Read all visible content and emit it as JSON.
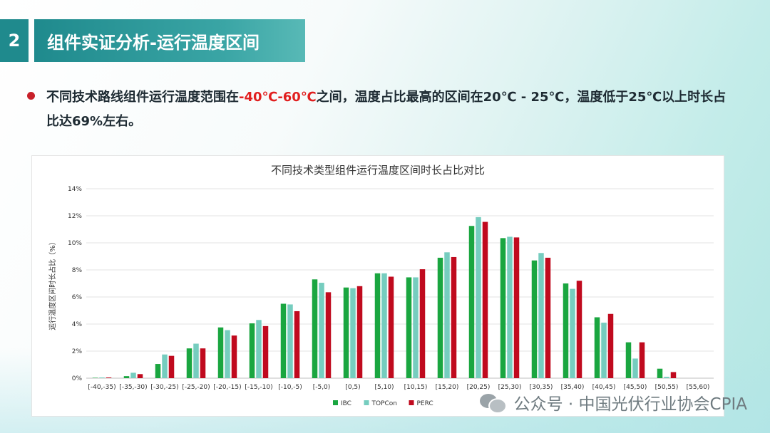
{
  "header": {
    "number": "2",
    "title": "组件实证分析-运行温度区间"
  },
  "bullet": {
    "part1": "不同技术路线组件运行温度范围在",
    "highlight": "-40℃-60℃",
    "part2": "之间，温度占比最高的区间在20℃ - 25℃，温度低于25℃以上时长占比达69%左右。"
  },
  "watermark": {
    "text": "公众号 · 中国光伏行业协会CPIA",
    "icon": "wechat-icon"
  },
  "colors": {
    "IBC": "#1aa640",
    "TOPCon": "#76cdbf",
    "PERC": "#c00a1e",
    "accent": "#1f8a8d",
    "bullet": "#c8202a"
  },
  "chart_data": {
    "type": "bar",
    "title": "不同技术类型组件运行温度区间时长占比对比",
    "ylabel": "运行温度区间时长占比（%）",
    "xlabel": "",
    "categories": [
      "[-40,-35)",
      "[-35,-30)",
      "[-30,-25)",
      "[-25,-20)",
      "[-20,-15)",
      "[-15,-10)",
      "[-10,-5)",
      "[-5,0)",
      "[0,5)",
      "[5,10)",
      "[10,15)",
      "[15,20)",
      "[20,25)",
      "[25,30)",
      "[30,35)",
      "[35,40)",
      "[40,45)",
      "[45,50)",
      "[50,55)",
      "[55,60)"
    ],
    "ylim": [
      0,
      14
    ],
    "yticks": [
      "0%",
      "2%",
      "4%",
      "6%",
      "8%",
      "10%",
      "12%",
      "14%"
    ],
    "grid": true,
    "legend_position": "bottom",
    "series": [
      {
        "name": "IBC",
        "values": [
          0.03,
          0.15,
          1.05,
          2.2,
          3.75,
          4.05,
          5.5,
          7.3,
          6.7,
          7.75,
          7.45,
          8.9,
          11.25,
          10.35,
          8.7,
          7.0,
          4.5,
          2.65,
          0.7,
          0
        ]
      },
      {
        "name": "TOPCon",
        "values": [
          0.05,
          0.4,
          1.75,
          2.55,
          3.55,
          4.3,
          5.45,
          7.05,
          6.65,
          7.75,
          7.45,
          9.3,
          11.9,
          10.45,
          9.25,
          6.6,
          4.1,
          1.45,
          0.1,
          0
        ]
      },
      {
        "name": "PERC",
        "values": [
          0.05,
          0.3,
          1.65,
          2.2,
          3.15,
          3.85,
          4.95,
          6.35,
          6.8,
          7.5,
          8.05,
          8.95,
          11.55,
          10.4,
          8.9,
          7.2,
          4.75,
          2.65,
          0.45,
          0
        ]
      }
    ]
  }
}
